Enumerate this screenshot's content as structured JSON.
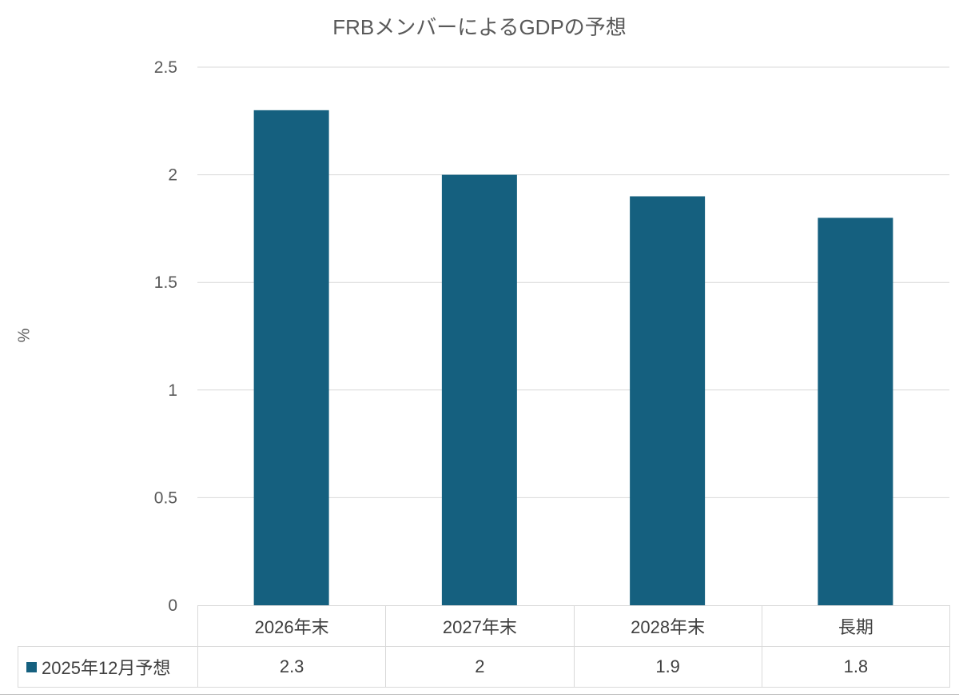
{
  "chart_data": {
    "type": "bar",
    "title": "FRBメンバーによるGDPの予想",
    "ylabel": "%",
    "xlabel": "",
    "ylim": [
      0,
      2.5
    ],
    "yticks": [
      "0",
      "0.5",
      "1",
      "1.5",
      "2",
      "2.5"
    ],
    "grid": true,
    "categories": [
      "2026年末",
      "2027年末",
      "2028年末",
      "長期"
    ],
    "series": [
      {
        "name": "2025年12月予想",
        "values": [
          2.3,
          2,
          1.9,
          1.8
        ],
        "labels": [
          "2.3",
          "2",
          "1.9",
          "1.8"
        ],
        "color": "#15607f"
      }
    ],
    "legend": "data-table"
  }
}
